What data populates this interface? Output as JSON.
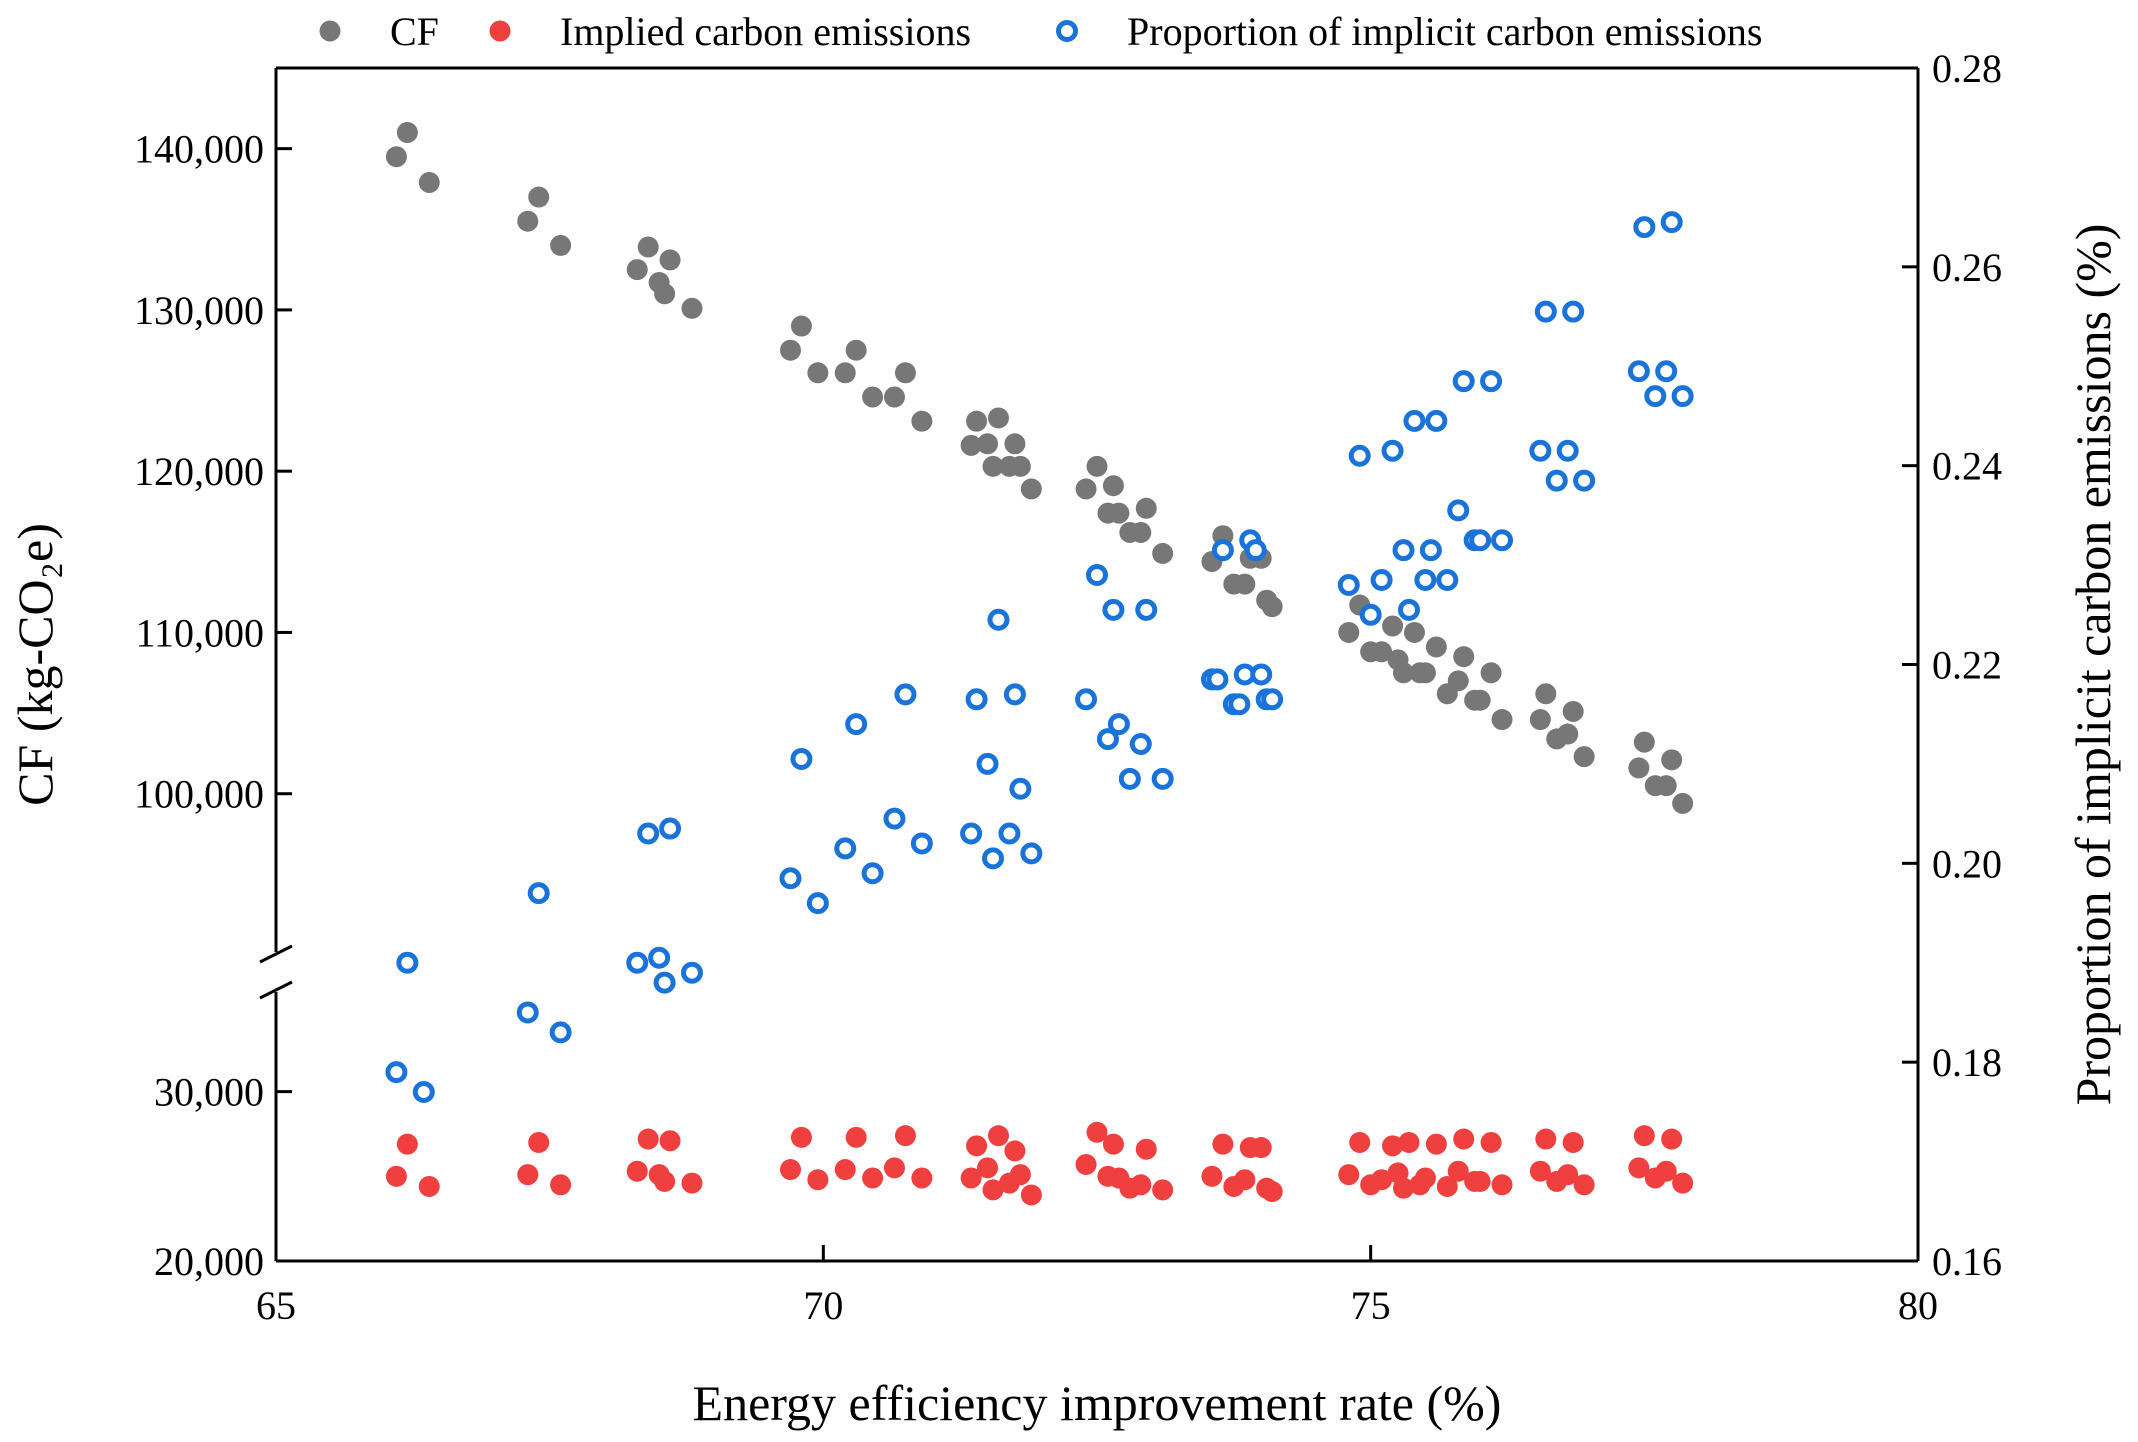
{
  "chart_data": {
    "type": "scatter",
    "xlabel": "Energy efficiency improvement rate (%)",
    "ylabel_left": "CF (kg-CO₂e)",
    "ylabel_right": "Proportion of implicit carbon emissions (%)",
    "xlim": [
      65,
      80
    ],
    "x_ticks": [
      "65",
      "70",
      "75",
      "80"
    ],
    "y_left_lower_ticks": [
      "20,000",
      "30,000"
    ],
    "y_left_upper_ticks": [
      "100,000",
      "110,000",
      "120,000",
      "130,000",
      "140,000"
    ],
    "y_left_lower_range": [
      20000,
      36000
    ],
    "y_left_upper_range": [
      90000,
      145000
    ],
    "y_right_ticks": [
      "0.16",
      "0.18",
      "0.20",
      "0.22",
      "0.24",
      "0.26",
      "0.28"
    ],
    "y_right_range": [
      0.16,
      0.28
    ],
    "axis_break": "left axis broken between 36,000 and 90,000",
    "legend_position": "top",
    "series": [
      {
        "name": "CF",
        "axis": "left",
        "marker": "filled-circle",
        "color": "#777777",
        "points": [
          [
            66.1,
            139500
          ],
          [
            66.2,
            141000
          ],
          [
            66.4,
            137900
          ],
          [
            67.3,
            135500
          ],
          [
            67.4,
            137000
          ],
          [
            67.6,
            134000
          ],
          [
            68.3,
            132500
          ],
          [
            68.4,
            133900
          ],
          [
            68.5,
            131700
          ],
          [
            68.55,
            131000
          ],
          [
            68.6,
            133100
          ],
          [
            68.8,
            130100
          ],
          [
            69.7,
            127500
          ],
          [
            69.8,
            129000
          ],
          [
            69.95,
            126100
          ],
          [
            70.2,
            126100
          ],
          [
            70.3,
            127500
          ],
          [
            70.45,
            124600
          ],
          [
            70.65,
            124600
          ],
          [
            70.75,
            126100
          ],
          [
            70.9,
            123100
          ],
          [
            71.35,
            121600
          ],
          [
            71.4,
            123100
          ],
          [
            71.5,
            121700
          ],
          [
            71.55,
            120300
          ],
          [
            71.6,
            123300
          ],
          [
            71.7,
            120300
          ],
          [
            71.75,
            121700
          ],
          [
            71.8,
            120300
          ],
          [
            71.9,
            118900
          ],
          [
            72.4,
            118900
          ],
          [
            72.5,
            120300
          ],
          [
            72.6,
            117400
          ],
          [
            72.65,
            119100
          ],
          [
            72.7,
            117400
          ],
          [
            72.8,
            116200
          ],
          [
            72.9,
            116200
          ],
          [
            72.95,
            117700
          ],
          [
            73.1,
            114900
          ],
          [
            73.55,
            114400
          ],
          [
            73.65,
            116000
          ],
          [
            73.75,
            113000
          ],
          [
            73.85,
            113000
          ],
          [
            73.9,
            114600
          ],
          [
            74.0,
            114600
          ],
          [
            74.05,
            112000
          ],
          [
            74.1,
            111600
          ],
          [
            74.8,
            110000
          ],
          [
            74.9,
            111700
          ],
          [
            75.0,
            108800
          ],
          [
            75.1,
            108800
          ],
          [
            75.2,
            110400
          ],
          [
            75.25,
            108300
          ],
          [
            75.3,
            107500
          ],
          [
            75.4,
            110000
          ],
          [
            75.45,
            107500
          ],
          [
            75.5,
            107500
          ],
          [
            75.6,
            109100
          ],
          [
            75.7,
            106200
          ],
          [
            75.8,
            107000
          ],
          [
            75.85,
            108500
          ],
          [
            75.95,
            105800
          ],
          [
            76.0,
            105800
          ],
          [
            76.1,
            107500
          ],
          [
            76.2,
            104600
          ],
          [
            76.55,
            104600
          ],
          [
            76.6,
            106200
          ],
          [
            76.7,
            103400
          ],
          [
            76.8,
            103700
          ],
          [
            76.85,
            105100
          ],
          [
            76.95,
            102300
          ],
          [
            77.45,
            101600
          ],
          [
            77.5,
            103200
          ],
          [
            77.6,
            100500
          ],
          [
            77.7,
            100500
          ],
          [
            77.75,
            102100
          ],
          [
            77.85,
            99400
          ]
        ]
      },
      {
        "name": "Implied carbon emissions",
        "axis": "left",
        "marker": "filled-circle",
        "color": "#ef3f3f",
        "points": [
          [
            66.1,
            25000
          ],
          [
            66.2,
            26900
          ],
          [
            66.4,
            24400
          ],
          [
            67.3,
            25100
          ],
          [
            67.4,
            27000
          ],
          [
            67.6,
            24500
          ],
          [
            68.3,
            25300
          ],
          [
            68.4,
            27200
          ],
          [
            68.5,
            25100
          ],
          [
            68.55,
            24700
          ],
          [
            68.6,
            27100
          ],
          [
            68.8,
            24600
          ],
          [
            69.7,
            25400
          ],
          [
            69.8,
            27300
          ],
          [
            69.95,
            24800
          ],
          [
            70.2,
            25400
          ],
          [
            70.3,
            27300
          ],
          [
            70.45,
            24900
          ],
          [
            70.65,
            25500
          ],
          [
            70.75,
            27400
          ],
          [
            70.9,
            24900
          ],
          [
            71.35,
            24900
          ],
          [
            71.4,
            26800
          ],
          [
            71.5,
            25500
          ],
          [
            71.55,
            24200
          ],
          [
            71.6,
            27400
          ],
          [
            71.7,
            24600
          ],
          [
            71.75,
            26500
          ],
          [
            71.8,
            25100
          ],
          [
            71.9,
            23900
          ],
          [
            72.4,
            25700
          ],
          [
            72.5,
            27600
          ],
          [
            72.6,
            25000
          ],
          [
            72.65,
            26900
          ],
          [
            72.7,
            24900
          ],
          [
            72.8,
            24300
          ],
          [
            72.9,
            24500
          ],
          [
            72.95,
            26600
          ],
          [
            73.1,
            24200
          ],
          [
            73.55,
            25000
          ],
          [
            73.65,
            26900
          ],
          [
            73.75,
            24400
          ],
          [
            73.85,
            24800
          ],
          [
            73.9,
            26700
          ],
          [
            74.0,
            26700
          ],
          [
            74.05,
            24300
          ],
          [
            74.1,
            24100
          ],
          [
            74.8,
            25100
          ],
          [
            74.9,
            27000
          ],
          [
            75.0,
            24500
          ],
          [
            75.1,
            24800
          ],
          [
            75.2,
            26800
          ],
          [
            75.25,
            25200
          ],
          [
            75.3,
            24300
          ],
          [
            75.35,
            27000
          ],
          [
            75.45,
            24500
          ],
          [
            75.5,
            24900
          ],
          [
            75.6,
            26900
          ],
          [
            75.7,
            24400
          ],
          [
            75.8,
            25300
          ],
          [
            75.85,
            27200
          ],
          [
            75.95,
            24700
          ],
          [
            76.0,
            24700
          ],
          [
            76.1,
            27000
          ],
          [
            76.2,
            24500
          ],
          [
            76.55,
            25300
          ],
          [
            76.6,
            27200
          ],
          [
            76.7,
            24700
          ],
          [
            76.8,
            25100
          ],
          [
            76.85,
            27000
          ],
          [
            76.95,
            24500
          ],
          [
            77.45,
            25500
          ],
          [
            77.5,
            27400
          ],
          [
            77.6,
            24900
          ],
          [
            77.7,
            25300
          ],
          [
            77.75,
            27200
          ],
          [
            77.85,
            24600
          ]
        ]
      },
      {
        "name": "Proportion of implicit carbon emissions",
        "axis": "right",
        "marker": "open-circle",
        "color": "#1a73d9",
        "points": [
          [
            66.1,
            0.179
          ],
          [
            66.2,
            0.19
          ],
          [
            66.35,
            0.177
          ],
          [
            67.3,
            0.185
          ],
          [
            67.4,
            0.197
          ],
          [
            67.6,
            0.183
          ],
          [
            68.3,
            0.19
          ],
          [
            68.4,
            0.203
          ],
          [
            68.5,
            0.1905
          ],
          [
            68.55,
            0.188
          ],
          [
            68.6,
            0.2035
          ],
          [
            68.8,
            0.189
          ],
          [
            69.7,
            0.1985
          ],
          [
            69.8,
            0.2105
          ],
          [
            69.95,
            0.196
          ],
          [
            70.2,
            0.2015
          ],
          [
            70.3,
            0.214
          ],
          [
            70.45,
            0.199
          ],
          [
            70.65,
            0.2045
          ],
          [
            70.75,
            0.217
          ],
          [
            70.9,
            0.202
          ],
          [
            71.35,
            0.203
          ],
          [
            71.4,
            0.2165
          ],
          [
            71.5,
            0.21
          ],
          [
            71.55,
            0.2005
          ],
          [
            71.6,
            0.2245
          ],
          [
            71.7,
            0.203
          ],
          [
            71.75,
            0.217
          ],
          [
            71.8,
            0.2075
          ],
          [
            71.9,
            0.201
          ],
          [
            72.4,
            0.2165
          ],
          [
            72.5,
            0.229
          ],
          [
            72.6,
            0.2125
          ],
          [
            72.65,
            0.2255
          ],
          [
            72.7,
            0.214
          ],
          [
            72.8,
            0.2085
          ],
          [
            72.9,
            0.212
          ],
          [
            72.95,
            0.2255
          ],
          [
            73.1,
            0.2085
          ],
          [
            73.55,
            0.2185
          ],
          [
            73.6,
            0.2185
          ],
          [
            73.65,
            0.2315
          ],
          [
            73.75,
            0.216
          ],
          [
            73.8,
            0.216
          ],
          [
            73.85,
            0.219
          ],
          [
            73.9,
            0.2325
          ],
          [
            73.95,
            0.2315
          ],
          [
            74.0,
            0.219
          ],
          [
            74.05,
            0.2165
          ],
          [
            74.1,
            0.2165
          ],
          [
            74.8,
            0.228
          ],
          [
            74.9,
            0.241
          ],
          [
            75.0,
            0.225
          ],
          [
            75.1,
            0.2285
          ],
          [
            75.2,
            0.2415
          ],
          [
            75.3,
            0.2315
          ],
          [
            75.35,
            0.2255
          ],
          [
            75.4,
            0.2445
          ],
          [
            75.5,
            0.2285
          ],
          [
            75.55,
            0.2315
          ],
          [
            75.6,
            0.2445
          ],
          [
            75.7,
            0.2285
          ],
          [
            75.8,
            0.2355
          ],
          [
            75.85,
            0.2485
          ],
          [
            75.95,
            0.2325
          ],
          [
            76.0,
            0.2325
          ],
          [
            76.1,
            0.2485
          ],
          [
            76.2,
            0.2325
          ],
          [
            76.55,
            0.2415
          ],
          [
            76.6,
            0.2555
          ],
          [
            76.7,
            0.2385
          ],
          [
            76.8,
            0.2415
          ],
          [
            76.85,
            0.2555
          ],
          [
            76.95,
            0.2385
          ],
          [
            77.45,
            0.2495
          ],
          [
            77.5,
            0.264
          ],
          [
            77.6,
            0.247
          ],
          [
            77.7,
            0.2495
          ],
          [
            77.75,
            0.2645
          ],
          [
            77.85,
            0.247
          ]
        ]
      }
    ]
  }
}
